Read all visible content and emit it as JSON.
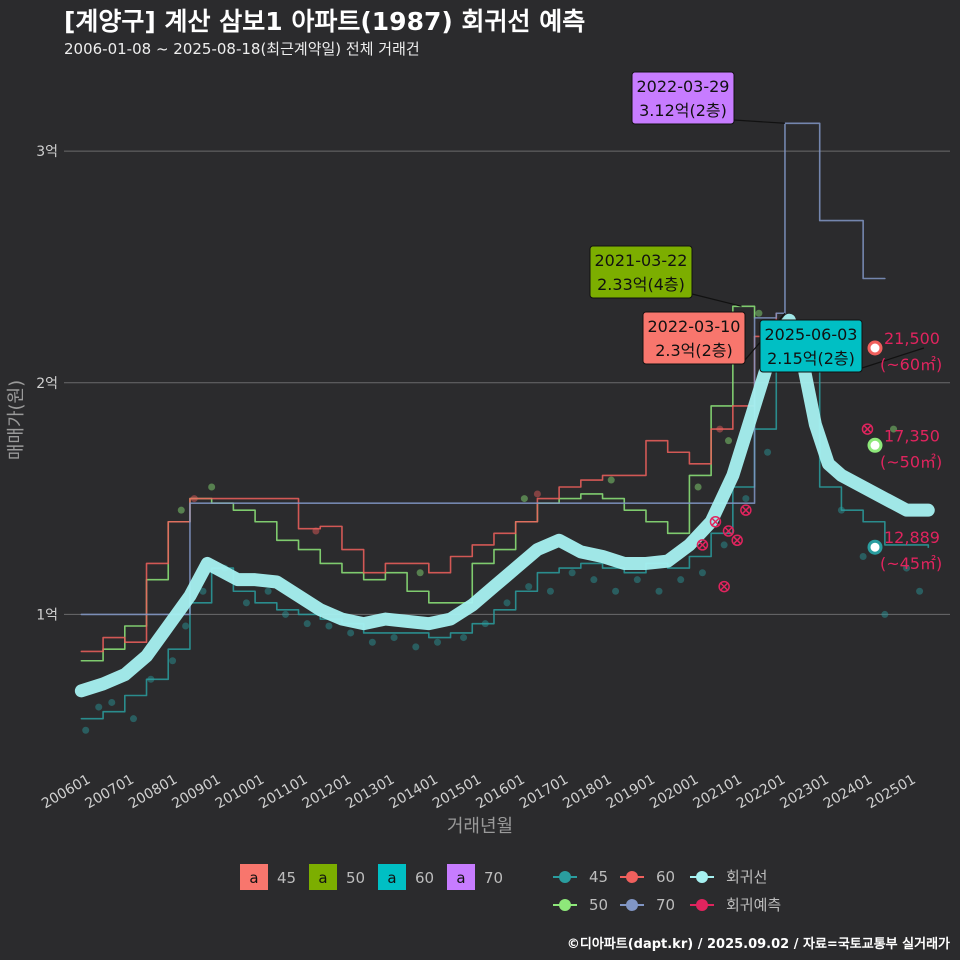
{
  "title": "[계양구] 계산 삼보1 아파트(1987) 회귀선 예측",
  "subtitle": "2006-01-08 ~ 2025-08-18(최근계약일) 전체 거래건",
  "caption": "©디아파트(dapt.kr) / 2025.09.02 / 자료=국토교통부 실거래가",
  "chart_data": {
    "type": "line",
    "xlabel": "거래년월",
    "ylabel": "매매가(원)",
    "x_ticks": [
      "200601",
      "200701",
      "200801",
      "200901",
      "201001",
      "201101",
      "201201",
      "201301",
      "201401",
      "201501",
      "201601",
      "201701",
      "201801",
      "201901",
      "202001",
      "202101",
      "202201",
      "202301",
      "202401",
      "202501"
    ],
    "y_ticks": [
      {
        "value": 1,
        "label": "1억"
      },
      {
        "value": 2,
        "label": "2억"
      },
      {
        "value": 3,
        "label": "3억"
      }
    ],
    "ylim": [
      0.35,
      3.35
    ],
    "xlim": [
      2005.6,
      2026.0
    ],
    "grid": true,
    "colors": {
      "45": "#2a9d9f",
      "50": "#8ee87a",
      "60": "#f0605d",
      "70": "#8196c5",
      "regression": "#a6f1f1",
      "forecast": "#e0245e"
    },
    "legend_area": {
      "title": "",
      "entries": [
        {
          "key": "a",
          "label": "45",
          "color": "#f8766d"
        },
        {
          "key": "a",
          "label": "50",
          "color": "#7cae00"
        },
        {
          "key": "a",
          "label": "60",
          "color": "#00bfc4"
        },
        {
          "key": "a",
          "label": "70",
          "color": "#c77cff"
        }
      ]
    },
    "legend_series": [
      {
        "label": "45",
        "color": "#2a9d9f"
      },
      {
        "label": "60",
        "color": "#f0605d"
      },
      {
        "label": "회귀선",
        "color": "#a6f1f1"
      },
      {
        "label": "50",
        "color": "#8ee87a"
      },
      {
        "label": "70",
        "color": "#8196c5"
      },
      {
        "label": "회귀예측",
        "color": "#e0245e"
      }
    ],
    "series": [
      {
        "name": "45",
        "color": "#2a9d9f",
        "x": [
          2006.0,
          2006.5,
          2007.0,
          2007.5,
          2008.0,
          2008.5,
          2009.0,
          2009.5,
          2010.0,
          2010.5,
          2011.0,
          2011.5,
          2012.0,
          2012.5,
          2013.0,
          2013.5,
          2014.0,
          2014.5,
          2015.0,
          2015.5,
          2016.0,
          2016.5,
          2017.0,
          2017.5,
          2018.0,
          2018.5,
          2019.0,
          2019.5,
          2020.0,
          2020.5,
          2021.0,
          2021.5,
          2022.0,
          2022.5,
          2023.0,
          2023.5,
          2024.0,
          2024.5,
          2025.0,
          2025.5
        ],
        "values": [
          0.55,
          0.58,
          0.65,
          0.72,
          0.85,
          1.05,
          1.2,
          1.1,
          1.05,
          1.02,
          1.0,
          0.98,
          0.96,
          0.92,
          0.92,
          0.92,
          0.9,
          0.92,
          0.96,
          1.02,
          1.1,
          1.18,
          1.2,
          1.22,
          1.2,
          1.18,
          1.22,
          1.2,
          1.25,
          1.35,
          1.55,
          1.8,
          2.1,
          2.05,
          1.55,
          1.45,
          1.4,
          1.3,
          1.3,
          1.29
        ]
      },
      {
        "name": "50",
        "color": "#8ee87a",
        "x": [
          2006.0,
          2006.5,
          2007.0,
          2007.5,
          2008.0,
          2008.5,
          2009.0,
          2009.5,
          2010.0,
          2010.5,
          2011.0,
          2011.5,
          2012.0,
          2012.5,
          2013.0,
          2013.5,
          2014.0,
          2014.5,
          2015.0,
          2015.5,
          2016.0,
          2016.5,
          2017.0,
          2017.5,
          2018.0,
          2018.5,
          2019.0,
          2019.5,
          2020.0,
          2020.5,
          2021.0,
          2021.5
        ],
        "values": [
          0.8,
          0.85,
          0.95,
          1.15,
          1.4,
          1.5,
          1.48,
          1.45,
          1.4,
          1.32,
          1.28,
          1.22,
          1.18,
          1.15,
          1.18,
          1.1,
          1.05,
          1.05,
          1.22,
          1.28,
          1.4,
          1.48,
          1.5,
          1.52,
          1.5,
          1.45,
          1.4,
          1.35,
          1.6,
          1.9,
          2.33,
          2.28
        ]
      },
      {
        "name": "60",
        "color": "#f0605d",
        "x": [
          2006.0,
          2006.5,
          2007.0,
          2007.5,
          2008.0,
          2008.5,
          2009.0,
          2011.0,
          2011.5,
          2012.0,
          2012.5,
          2013.0,
          2013.5,
          2014.0,
          2014.5,
          2015.0,
          2015.5,
          2016.0,
          2016.5,
          2017.0,
          2017.5,
          2018.0,
          2018.5,
          2019.0,
          2019.5,
          2020.0,
          2020.5,
          2021.0,
          2021.5,
          2022.0
        ],
        "values": [
          0.84,
          0.9,
          0.88,
          1.22,
          1.4,
          1.5,
          1.5,
          1.37,
          1.38,
          1.28,
          1.18,
          1.22,
          1.22,
          1.18,
          1.25,
          1.3,
          1.35,
          1.4,
          1.5,
          1.55,
          1.58,
          1.6,
          1.6,
          1.75,
          1.7,
          1.65,
          1.8,
          1.9,
          2.2,
          2.3
        ]
      },
      {
        "name": "70",
        "color": "#8196c5",
        "x": [
          2006.0,
          2006.3,
          2008.5,
          2008.9,
          2021.5,
          2022.0,
          2022.2,
          2022.7,
          2023.0,
          2023.5,
          2024.0,
          2024.5
        ],
        "values": [
          1.0,
          1.0,
          1.48,
          1.48,
          2.28,
          2.3,
          3.12,
          3.12,
          2.7,
          2.7,
          2.45,
          2.45
        ]
      },
      {
        "name": "회귀선",
        "color": "#a6f1f1",
        "x": [
          2006.0,
          2006.5,
          2007.0,
          2007.5,
          2008.0,
          2008.5,
          2008.9,
          2009.2,
          2009.6,
          2010.0,
          2010.5,
          2011.0,
          2011.5,
          2012.0,
          2012.5,
          2013.0,
          2013.5,
          2014.0,
          2014.5,
          2015.0,
          2015.5,
          2016.0,
          2016.5,
          2017.0,
          2017.5,
          2018.0,
          2018.5,
          2019.0,
          2019.5,
          2020.0,
          2020.5,
          2021.0,
          2021.5,
          2022.0,
          2022.3,
          2022.6,
          2022.9,
          2023.2,
          2023.5,
          2024.0,
          2024.5,
          2025.0,
          2025.5
        ],
        "values": [
          0.67,
          0.7,
          0.74,
          0.82,
          0.95,
          1.08,
          1.22,
          1.19,
          1.15,
          1.15,
          1.14,
          1.08,
          1.02,
          0.98,
          0.96,
          0.98,
          0.97,
          0.96,
          0.98,
          1.04,
          1.12,
          1.2,
          1.28,
          1.32,
          1.27,
          1.25,
          1.22,
          1.22,
          1.23,
          1.3,
          1.4,
          1.6,
          1.9,
          2.2,
          2.27,
          2.1,
          1.82,
          1.65,
          1.6,
          1.55,
          1.5,
          1.45,
          1.45
        ]
      },
      {
        "name": "회귀예측",
        "color": "#e0245e",
        "x": [
          2020.3,
          2020.6,
          2020.9,
          2021.1,
          2021.3,
          2020.8,
          2024.1
        ],
        "values": [
          1.3,
          1.4,
          1.36,
          1.32,
          1.45,
          1.12,
          1.8
        ]
      }
    ],
    "scatter": [
      {
        "series": "45",
        "x": [
          2006.1,
          2006.4,
          2006.7,
          2007.2,
          2007.6,
          2008.1,
          2008.4,
          2008.8,
          2009.3,
          2009.8,
          2010.3,
          2010.7,
          2011.2,
          2011.7,
          2012.2,
          2012.7,
          2013.2,
          2013.7,
          2014.2,
          2014.8,
          2015.3,
          2015.8,
          2016.3,
          2016.8,
          2017.3,
          2017.8,
          2018.3,
          2018.8,
          2019.3,
          2019.8,
          2020.3,
          2020.8,
          2021.3,
          2021.8,
          2023.5,
          2024.0,
          2024.5,
          2025.0,
          2025.3
        ],
        "values": [
          0.5,
          0.6,
          0.62,
          0.55,
          0.72,
          0.8,
          0.95,
          1.1,
          1.2,
          1.05,
          1.1,
          1.0,
          0.96,
          0.95,
          0.92,
          0.88,
          0.9,
          0.86,
          0.88,
          0.9,
          0.96,
          1.05,
          1.12,
          1.1,
          1.18,
          1.15,
          1.1,
          1.15,
          1.1,
          1.15,
          1.18,
          1.3,
          1.5,
          1.7,
          1.45,
          1.25,
          1.0,
          1.2,
          1.1
        ]
      },
      {
        "series": "50",
        "x": [
          2008.3,
          2009.0,
          2013.8,
          2016.2,
          2018.2,
          2020.2,
          2020.9,
          2021.6,
          2024.7
        ],
        "values": [
          1.45,
          1.55,
          1.18,
          1.5,
          1.58,
          1.55,
          1.75,
          2.3,
          1.8
        ]
      },
      {
        "series": "60",
        "x": [
          2008.6,
          2011.4,
          2016.5,
          2020.7
        ],
        "values": [
          1.5,
          1.36,
          1.52,
          1.8
        ]
      }
    ],
    "callouts": [
      {
        "date": "2022-03-29",
        "price": "3.12억(2층)",
        "x": 2022.2,
        "y": 3.12,
        "bg": "#c77cff"
      },
      {
        "date": "2021-03-22",
        "price": "2.33억(4층)",
        "x": 2021.2,
        "y": 2.33,
        "bg": "#7cae00"
      },
      {
        "date": "2022-03-10",
        "price": "2.3억(2층)",
        "x": 2022.2,
        "y": 2.3,
        "bg": "#f8766d"
      },
      {
        "date": "2025-06-03",
        "price": "2.15억(2층)",
        "x": 2025.4,
        "y": 2.15,
        "bg": "#00bfc4"
      }
    ],
    "end_labels": [
      {
        "value": "21,500",
        "area": "(~60㎡)",
        "y": 2.15,
        "color": "#f0605d"
      },
      {
        "value": "17,350",
        "area": "(~50㎡)",
        "y": 1.73,
        "color": "#8ee87a"
      },
      {
        "value": "12,889",
        "area": "(~45㎡)",
        "y": 1.29,
        "color": "#2a9d9f"
      }
    ]
  }
}
